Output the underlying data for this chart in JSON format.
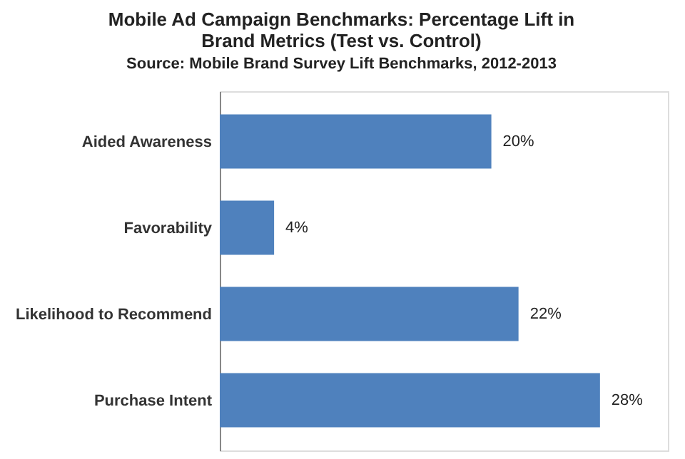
{
  "chart_data": {
    "type": "bar",
    "orientation": "horizontal",
    "title": [
      "Mobile Ad Campaign Benchmarks: Percentage Lift in",
      "Brand Metrics (Test vs. Control)"
    ],
    "subtitle": "Source: Mobile Brand Survey Lift Benchmarks, 2012-2013",
    "categories": [
      "Aided Awareness",
      "Favorability",
      "Likelihood to Recommend",
      "Purchase Intent"
    ],
    "values": [
      20,
      4,
      22,
      28
    ],
    "value_labels": [
      "20%",
      "4%",
      "22%",
      "28%"
    ],
    "color": "#4f81bd",
    "xlim": [
      0,
      33
    ],
    "tick_labels": "y"
  }
}
